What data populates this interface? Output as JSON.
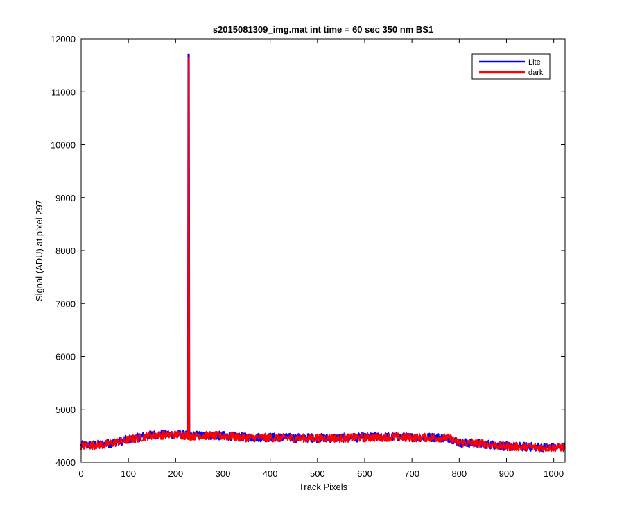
{
  "chart_data": {
    "type": "line",
    "title": "s2015081309_img.mat int time = 60 sec  350 nm BS1",
    "xlabel": "Track Pixels",
    "ylabel": "Signal (ADU) at pixel 297",
    "xlim": [
      0,
      1024
    ],
    "ylim": [
      4000,
      12000
    ],
    "xticks": [
      0,
      100,
      200,
      300,
      400,
      500,
      600,
      700,
      800,
      900,
      1000
    ],
    "yticks": [
      4000,
      5000,
      6000,
      7000,
      8000,
      9000,
      10000,
      11000,
      12000
    ],
    "grid": false,
    "legend_position": "top-right",
    "series": [
      {
        "name": "Lite",
        "color": "#0000ff",
        "points_x": [
          0,
          50,
          100,
          150,
          200,
          226,
          227,
          228,
          229,
          230,
          250,
          300,
          350,
          400,
          450,
          500,
          550,
          600,
          650,
          700,
          750,
          780,
          800,
          850,
          900,
          950,
          1000,
          1023
        ],
        "points_y": [
          4320,
          4340,
          4430,
          4520,
          4530,
          4510,
          11700,
          11700,
          4560,
          4500,
          4510,
          4500,
          4470,
          4470,
          4460,
          4460,
          4460,
          4470,
          4480,
          4470,
          4470,
          4460,
          4370,
          4350,
          4300,
          4290,
          4280,
          4290
        ]
      },
      {
        "name": "dark",
        "color": "#ff0000",
        "points_x": [
          0,
          50,
          100,
          150,
          200,
          226,
          227,
          228,
          229,
          230,
          250,
          300,
          350,
          400,
          450,
          500,
          550,
          600,
          650,
          700,
          750,
          780,
          800,
          850,
          900,
          950,
          1000,
          1023
        ],
        "points_y": [
          4310,
          4335,
          4420,
          4510,
          4520,
          4505,
          11650,
          11650,
          4550,
          4495,
          4505,
          4495,
          4465,
          4465,
          4455,
          4455,
          4455,
          4465,
          4475,
          4465,
          4465,
          4455,
          4365,
          4345,
          4295,
          4285,
          4275,
          4285
        ]
      }
    ]
  }
}
